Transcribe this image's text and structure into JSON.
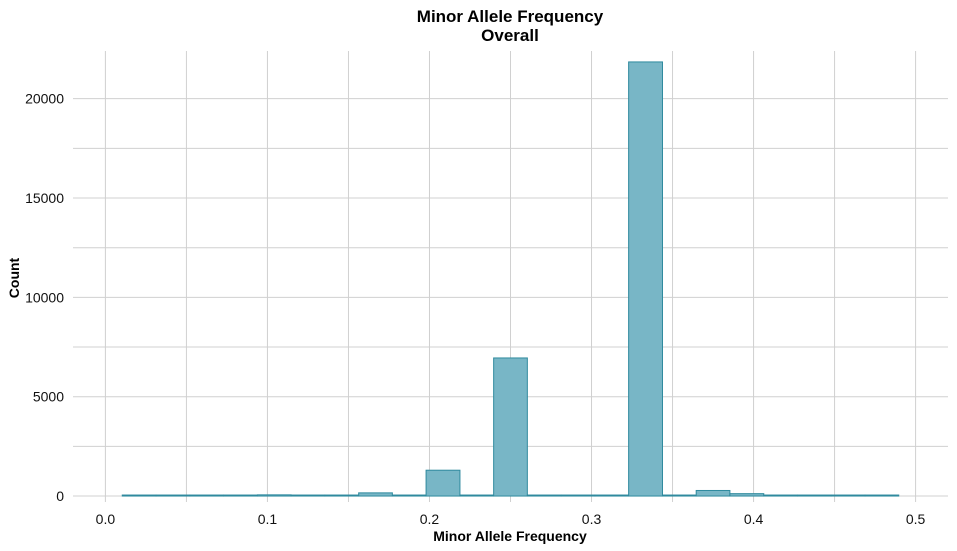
{
  "chart_data": {
    "type": "bar",
    "title": "Minor Allele Frequency",
    "subtitle": "Overall",
    "xlabel": "Minor Allele Frequency",
    "ylabel": "Count",
    "xlim": [
      -0.02,
      0.52
    ],
    "ylim": [
      -300,
      22400
    ],
    "x_ticks": [
      0.0,
      0.1,
      0.2,
      0.3,
      0.4,
      0.5
    ],
    "x_tick_labels": [
      "0.0",
      "0.1",
      "0.2",
      "0.3",
      "0.4",
      "0.5"
    ],
    "y_ticks": [
      0,
      5000,
      10000,
      15000,
      20000
    ],
    "y_tick_labels": [
      "0",
      "5000",
      "10000",
      "15000",
      "20000"
    ],
    "grid": true,
    "bin_width": 0.0208,
    "bins": [
      {
        "x0": 0.0104,
        "x1": 0.0313,
        "count": 10
      },
      {
        "x0": 0.0313,
        "x1": 0.0521,
        "count": 10
      },
      {
        "x0": 0.0521,
        "x1": 0.0729,
        "count": 10
      },
      {
        "x0": 0.0729,
        "x1": 0.0938,
        "count": 10
      },
      {
        "x0": 0.0938,
        "x1": 0.1146,
        "count": 60
      },
      {
        "x0": 0.1146,
        "x1": 0.1354,
        "count": 10
      },
      {
        "x0": 0.1354,
        "x1": 0.1563,
        "count": 10
      },
      {
        "x0": 0.1563,
        "x1": 0.1771,
        "count": 160
      },
      {
        "x0": 0.1771,
        "x1": 0.1979,
        "count": 10
      },
      {
        "x0": 0.1979,
        "x1": 0.2188,
        "count": 1300
      },
      {
        "x0": 0.2188,
        "x1": 0.2396,
        "count": 10
      },
      {
        "x0": 0.2396,
        "x1": 0.2604,
        "count": 6950
      },
      {
        "x0": 0.2604,
        "x1": 0.2813,
        "count": 10
      },
      {
        "x0": 0.2813,
        "x1": 0.3021,
        "count": 50
      },
      {
        "x0": 0.3021,
        "x1": 0.3229,
        "count": 10
      },
      {
        "x0": 0.3229,
        "x1": 0.3438,
        "count": 21850
      },
      {
        "x0": 0.3438,
        "x1": 0.3646,
        "count": 10
      },
      {
        "x0": 0.3646,
        "x1": 0.3854,
        "count": 280
      },
      {
        "x0": 0.3854,
        "x1": 0.4063,
        "count": 120
      },
      {
        "x0": 0.4063,
        "x1": 0.4271,
        "count": 10
      },
      {
        "x0": 0.4271,
        "x1": 0.4479,
        "count": 10
      },
      {
        "x0": 0.4479,
        "x1": 0.4688,
        "count": 10
      },
      {
        "x0": 0.4688,
        "x1": 0.4896,
        "count": 10
      }
    ],
    "colors": {
      "fill": "#78B6C6",
      "stroke": "#2F8A9E",
      "grid": "#D0D0D0"
    }
  }
}
